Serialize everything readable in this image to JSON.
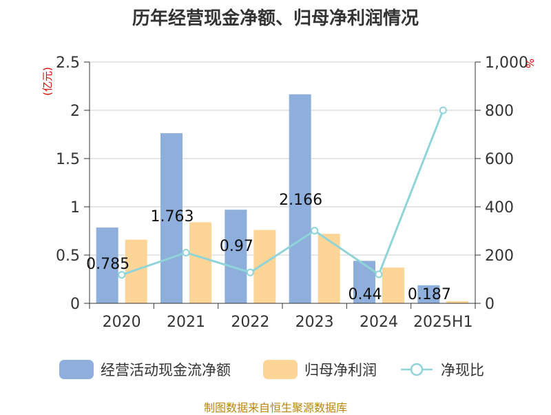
{
  "title": "历年经营现金净额、归母净利润情况",
  "source": "制图数据来自恒生聚源数据库",
  "left_axis_unit": "(亿元)",
  "right_axis_unit": "%",
  "legend": [
    {
      "name": "经营活动现金流净额",
      "color": "#8eaedb",
      "kind": "bar"
    },
    {
      "name": "归母净利润",
      "color": "#fdd597",
      "kind": "bar"
    },
    {
      "name": "净现比",
      "color": "#8fd4d9",
      "kind": "line"
    }
  ],
  "chart_data": {
    "type": "bar",
    "categories": [
      "2020",
      "2021",
      "2022",
      "2023",
      "2024",
      "2025H1"
    ],
    "series": [
      {
        "name": "经营活动现金流净额",
        "axis": "left",
        "type": "bar",
        "color": "#8eaedb",
        "values": [
          0.785,
          1.763,
          0.97,
          2.166,
          0.44,
          0.187
        ],
        "labels": [
          "0.785",
          "1.763",
          "0.97",
          "2.166",
          "0.44",
          "0.187"
        ]
      },
      {
        "name": "归母净利润",
        "axis": "left",
        "type": "bar",
        "color": "#fdd597",
        "values": [
          0.66,
          0.84,
          0.76,
          0.72,
          0.37,
          0.023
        ]
      },
      {
        "name": "净现比",
        "axis": "right",
        "type": "line",
        "color": "#8fd4d9",
        "values": [
          118,
          210,
          128,
          301,
          120,
          800
        ]
      }
    ],
    "y_left": {
      "min": 0,
      "max": 2.5,
      "ticks": [
        "0",
        "0.5",
        "1",
        "1.5",
        "2",
        "2.5"
      ]
    },
    "y_right": {
      "min": 0,
      "max": 1000,
      "ticks": [
        "0",
        "200",
        "400",
        "600",
        "800",
        "1,000"
      ]
    },
    "grid": true,
    "legend_position": "bottom"
  }
}
